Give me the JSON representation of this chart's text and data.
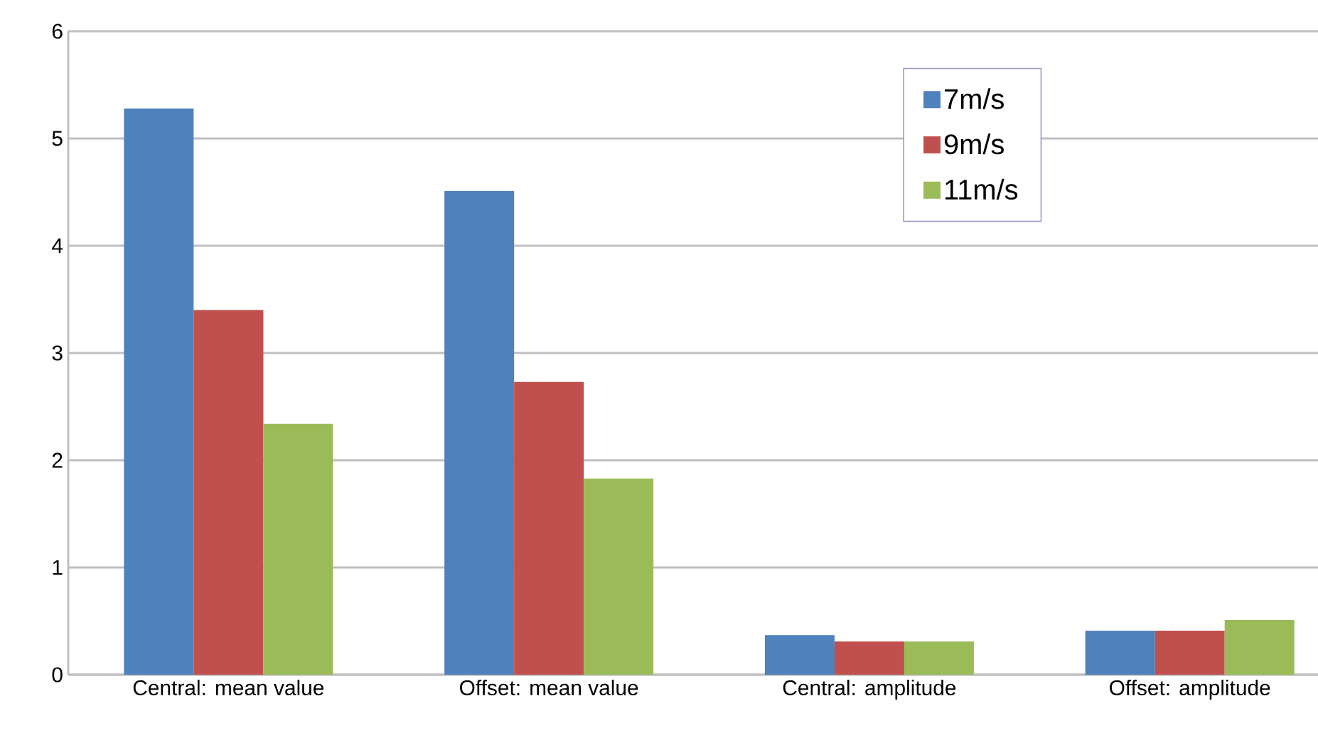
{
  "chart_data": {
    "type": "bar",
    "categories": [
      "Central: mean value",
      "Offset: mean value",
      "Central: amplitude",
      "Offset: amplitude"
    ],
    "series": [
      {
        "name": "7m/s",
        "color": "#4f81bd",
        "values": [
          5.28,
          4.51,
          0.37,
          0.41
        ]
      },
      {
        "name": "9m/s",
        "color": "#c0504d",
        "values": [
          3.4,
          2.73,
          0.31,
          0.41
        ]
      },
      {
        "name": "11m/s",
        "color": "#9bbb59",
        "values": [
          2.34,
          1.83,
          0.31,
          0.51
        ]
      }
    ],
    "ylim": [
      0,
      6
    ],
    "yticks": [
      0,
      1,
      2,
      3,
      4,
      5,
      6
    ],
    "grid": "y",
    "legend": "top right"
  }
}
